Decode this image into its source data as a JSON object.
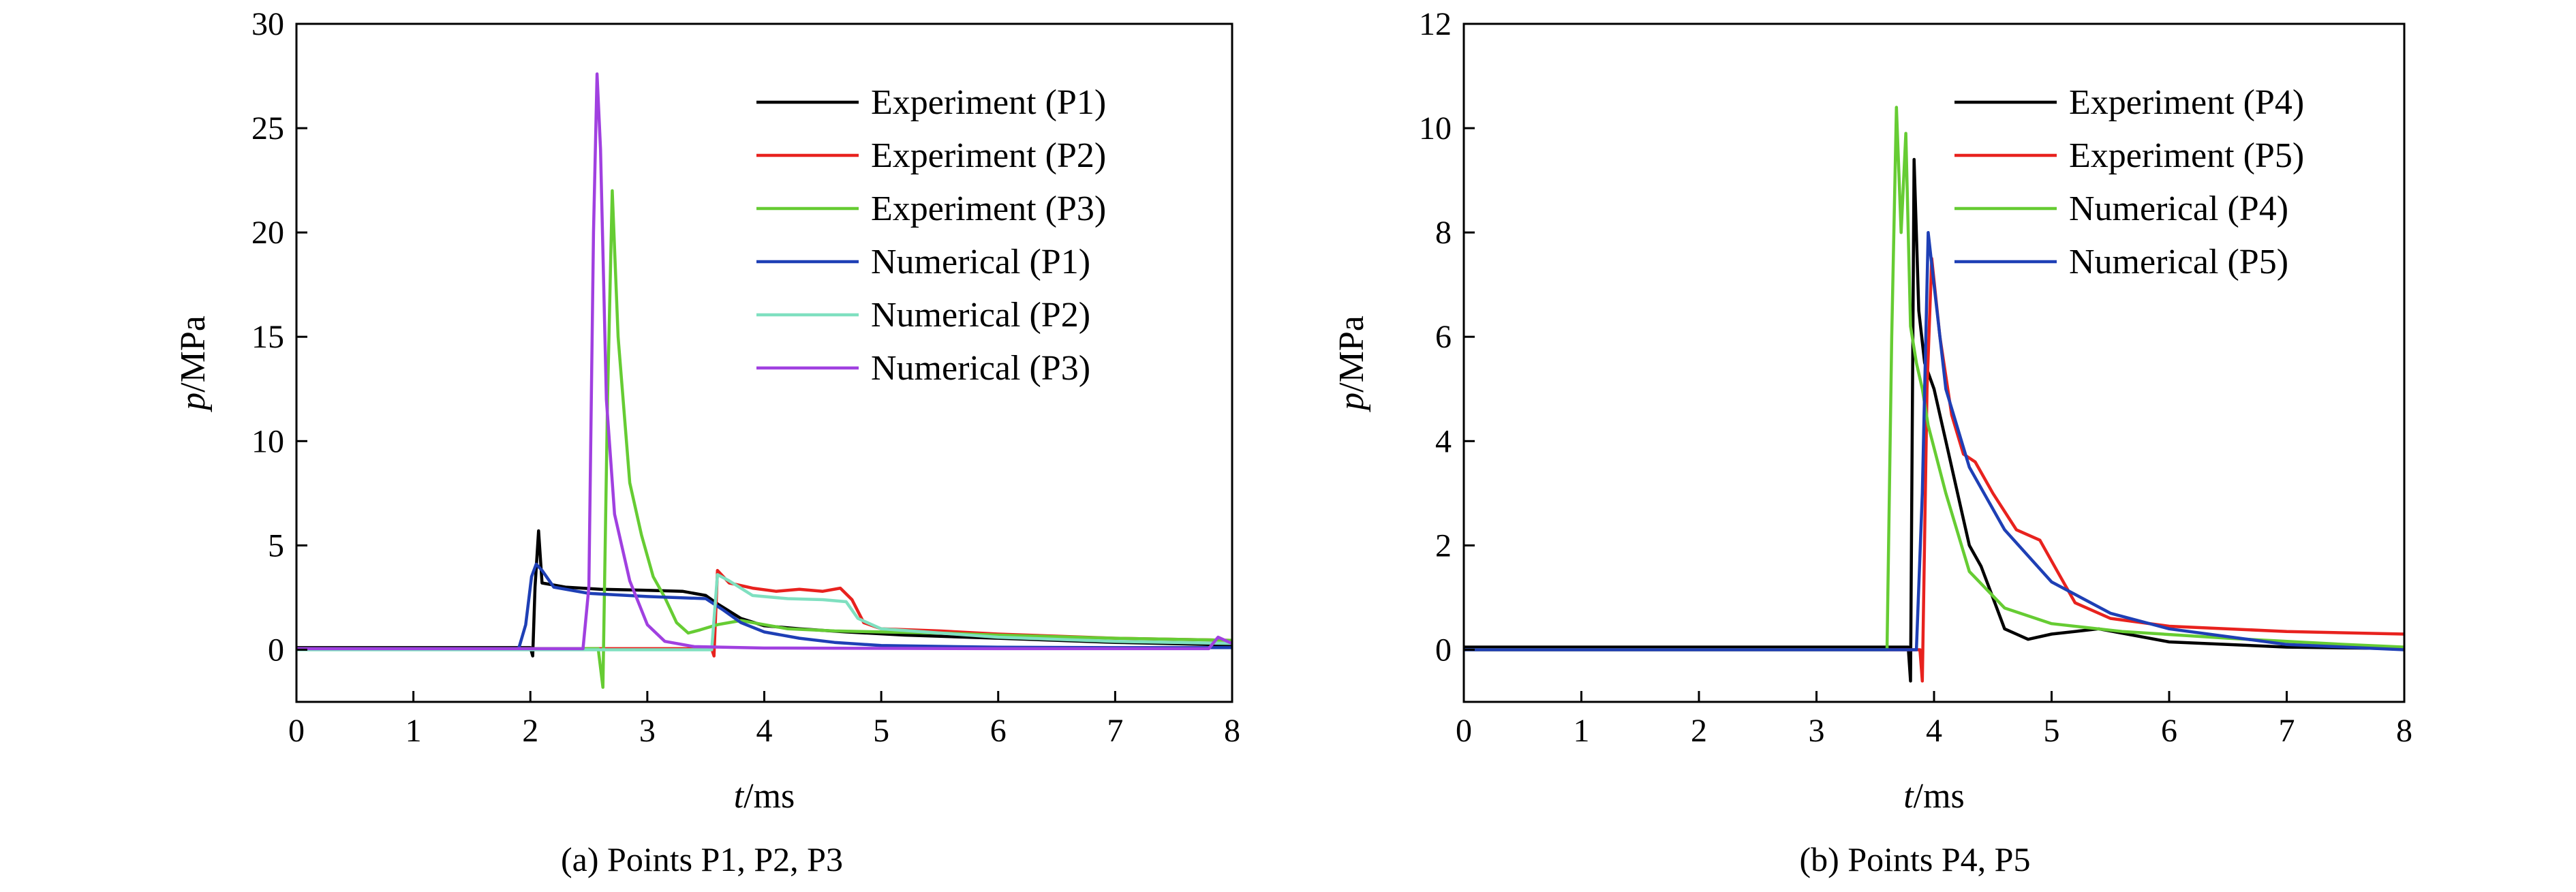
{
  "chart_data": [
    {
      "type": "line",
      "caption": "(a) Points P1, P2, P3",
      "xlabel_var": "t",
      "xlabel_unit": "/ms",
      "ylabel_var": "p",
      "ylabel_unit": "/MPa",
      "xlim": [
        0,
        8
      ],
      "ylim": [
        -2.5,
        30
      ],
      "xticks": [
        0,
        1,
        2,
        3,
        4,
        5,
        6,
        7,
        8
      ],
      "yticks": [
        0,
        5,
        10,
        15,
        20,
        25,
        30
      ],
      "legend_position": "top-right",
      "series": [
        {
          "name": "Experiment (P1)",
          "color": "#000000",
          "points": [
            [
              0,
              0.1
            ],
            [
              2.0,
              0.1
            ],
            [
              2.02,
              -0.3
            ],
            [
              2.04,
              3.0
            ],
            [
              2.07,
              5.7
            ],
            [
              2.1,
              3.2
            ],
            [
              2.3,
              3.0
            ],
            [
              2.6,
              2.9
            ],
            [
              3.0,
              2.85
            ],
            [
              3.3,
              2.8
            ],
            [
              3.5,
              2.6
            ],
            [
              3.6,
              2.2
            ],
            [
              3.8,
              1.5
            ],
            [
              4.0,
              1.15
            ],
            [
              4.3,
              1.0
            ],
            [
              4.7,
              0.85
            ],
            [
              5.2,
              0.7
            ],
            [
              6.0,
              0.55
            ],
            [
              7.0,
              0.35
            ],
            [
              7.8,
              0.25
            ],
            [
              8.0,
              0.2
            ]
          ]
        },
        {
          "name": "Experiment (P2)",
          "color": "#e8221e",
          "points": [
            [
              0,
              0.05
            ],
            [
              3.55,
              0.05
            ],
            [
              3.57,
              -0.3
            ],
            [
              3.6,
              3.8
            ],
            [
              3.7,
              3.2
            ],
            [
              3.9,
              2.95
            ],
            [
              4.1,
              2.8
            ],
            [
              4.3,
              2.9
            ],
            [
              4.5,
              2.8
            ],
            [
              4.65,
              2.95
            ],
            [
              4.75,
              2.4
            ],
            [
              4.85,
              1.3
            ],
            [
              5.0,
              1.0
            ],
            [
              5.5,
              0.9
            ],
            [
              6.0,
              0.75
            ],
            [
              7.0,
              0.55
            ],
            [
              8.0,
              0.45
            ]
          ]
        },
        {
          "name": "Experiment (P3)",
          "color": "#66cc33",
          "points": [
            [
              0,
              0.05
            ],
            [
              2.58,
              0.05
            ],
            [
              2.62,
              -1.8
            ],
            [
              2.66,
              12
            ],
            [
              2.7,
              22
            ],
            [
              2.75,
              15
            ],
            [
              2.85,
              8
            ],
            [
              2.95,
              5.5
            ],
            [
              3.05,
              3.5
            ],
            [
              3.15,
              2.5
            ],
            [
              3.25,
              1.3
            ],
            [
              3.35,
              0.8
            ],
            [
              3.45,
              0.95
            ],
            [
              3.6,
              1.2
            ],
            [
              3.8,
              1.4
            ],
            [
              4.0,
              1.2
            ],
            [
              4.2,
              1.0
            ],
            [
              4.6,
              0.9
            ],
            [
              5.0,
              0.85
            ],
            [
              5.5,
              0.8
            ],
            [
              6.0,
              0.7
            ],
            [
              7.0,
              0.55
            ],
            [
              8.0,
              0.45
            ]
          ]
        },
        {
          "name": "Numerical (P1)",
          "color": "#1e3fb5",
          "points": [
            [
              0,
              0.05
            ],
            [
              1.9,
              0.05
            ],
            [
              1.96,
              1.2
            ],
            [
              2.01,
              3.5
            ],
            [
              2.05,
              4.1
            ],
            [
              2.1,
              3.8
            ],
            [
              2.2,
              3.0
            ],
            [
              2.5,
              2.7
            ],
            [
              3.0,
              2.55
            ],
            [
              3.5,
              2.45
            ],
            [
              3.65,
              1.9
            ],
            [
              3.8,
              1.3
            ],
            [
              4.0,
              0.85
            ],
            [
              4.3,
              0.55
            ],
            [
              4.6,
              0.35
            ],
            [
              5.0,
              0.2
            ],
            [
              6.0,
              0.12
            ],
            [
              7.0,
              0.1
            ],
            [
              8.0,
              0.1
            ]
          ]
        },
        {
          "name": "Numerical (P2)",
          "color": "#7fe0c0",
          "points": [
            [
              0,
              0.0
            ],
            [
              3.55,
              0.0
            ],
            [
              3.6,
              3.6
            ],
            [
              3.7,
              3.3
            ],
            [
              3.9,
              2.6
            ],
            [
              4.2,
              2.45
            ],
            [
              4.5,
              2.4
            ],
            [
              4.7,
              2.3
            ],
            [
              4.8,
              1.5
            ],
            [
              5.0,
              1.0
            ],
            [
              6.0,
              0.6
            ],
            [
              7.0,
              0.4
            ],
            [
              8.0,
              0.3
            ]
          ]
        },
        {
          "name": "Numerical (P3)",
          "color": "#a040e0",
          "points": [
            [
              0,
              0.05
            ],
            [
              2.45,
              0.05
            ],
            [
              2.5,
              3.0
            ],
            [
              2.54,
              20
            ],
            [
              2.57,
              27.6
            ],
            [
              2.6,
              24
            ],
            [
              2.65,
              12
            ],
            [
              2.72,
              6.5
            ],
            [
              2.85,
              3.3
            ],
            [
              3.0,
              1.2
            ],
            [
              3.15,
              0.4
            ],
            [
              3.4,
              0.15
            ],
            [
              4.0,
              0.08
            ],
            [
              6.0,
              0.05
            ],
            [
              7.8,
              0.05
            ],
            [
              7.88,
              0.6
            ],
            [
              8.0,
              0.3
            ]
          ]
        }
      ]
    },
    {
      "type": "line",
      "caption": "(b) Points P4, P5",
      "xlabel_var": "t",
      "xlabel_unit": "/ms",
      "ylabel_var": "p",
      "ylabel_unit": "/MPa",
      "xlim": [
        0,
        8
      ],
      "ylim": [
        -1,
        12
      ],
      "xticks": [
        0,
        1,
        2,
        3,
        4,
        5,
        6,
        7,
        8
      ],
      "yticks": [
        0,
        2,
        4,
        6,
        8,
        10,
        12
      ],
      "legend_position": "top-right",
      "series": [
        {
          "name": "Experiment (P4)",
          "color": "#000000",
          "points": [
            [
              0,
              0.05
            ],
            [
              3.78,
              0.05
            ],
            [
              3.8,
              -0.6
            ],
            [
              3.83,
              9.4
            ],
            [
              3.87,
              6.5
            ],
            [
              3.92,
              5.5
            ],
            [
              4.0,
              5.0
            ],
            [
              4.1,
              4.0
            ],
            [
              4.2,
              3.0
            ],
            [
              4.3,
              2.0
            ],
            [
              4.4,
              1.6
            ],
            [
              4.5,
              1.0
            ],
            [
              4.6,
              0.4
            ],
            [
              4.7,
              0.3
            ],
            [
              4.8,
              0.2
            ],
            [
              5.0,
              0.3
            ],
            [
              5.4,
              0.4
            ],
            [
              6.0,
              0.15
            ],
            [
              7.0,
              0.05
            ],
            [
              8.0,
              0.02
            ]
          ]
        },
        {
          "name": "Experiment (P5)",
          "color": "#e8221e",
          "points": [
            [
              0,
              0.0
            ],
            [
              3.88,
              0.0
            ],
            [
              3.9,
              -0.6
            ],
            [
              3.94,
              5.0
            ],
            [
              3.98,
              7.5
            ],
            [
              4.05,
              6.0
            ],
            [
              4.15,
              4.5
            ],
            [
              4.25,
              3.75
            ],
            [
              4.35,
              3.6
            ],
            [
              4.5,
              3.0
            ],
            [
              4.7,
              2.3
            ],
            [
              4.9,
              2.1
            ],
            [
              5.05,
              1.5
            ],
            [
              5.2,
              0.9
            ],
            [
              5.5,
              0.6
            ],
            [
              6.0,
              0.45
            ],
            [
              7.0,
              0.35
            ],
            [
              8.0,
              0.3
            ]
          ]
        },
        {
          "name": "Numerical (P4)",
          "color": "#66cc33",
          "points": [
            [
              0,
              0.0
            ],
            [
              3.6,
              0.0
            ],
            [
              3.64,
              6.0
            ],
            [
              3.68,
              10.4
            ],
            [
              3.72,
              8.0
            ],
            [
              3.76,
              9.9
            ],
            [
              3.8,
              6.2
            ],
            [
              3.85,
              5.5
            ],
            [
              3.9,
              5.0
            ],
            [
              3.95,
              4.3
            ],
            [
              4.1,
              3.0
            ],
            [
              4.3,
              1.5
            ],
            [
              4.6,
              0.8
            ],
            [
              5.0,
              0.5
            ],
            [
              5.6,
              0.35
            ],
            [
              6.5,
              0.22
            ],
            [
              7.5,
              0.1
            ],
            [
              8.0,
              0.05
            ]
          ]
        },
        {
          "name": "Numerical (P5)",
          "color": "#1e3fb5",
          "points": [
            [
              0,
              0.0
            ],
            [
              3.85,
              0.0
            ],
            [
              3.9,
              3.0
            ],
            [
              3.95,
              8.0
            ],
            [
              4.0,
              7.0
            ],
            [
              4.1,
              5.0
            ],
            [
              4.3,
              3.5
            ],
            [
              4.6,
              2.3
            ],
            [
              5.0,
              1.3
            ],
            [
              5.5,
              0.7
            ],
            [
              6.0,
              0.4
            ],
            [
              7.0,
              0.1
            ],
            [
              8.0,
              0.0
            ]
          ]
        }
      ]
    }
  ]
}
